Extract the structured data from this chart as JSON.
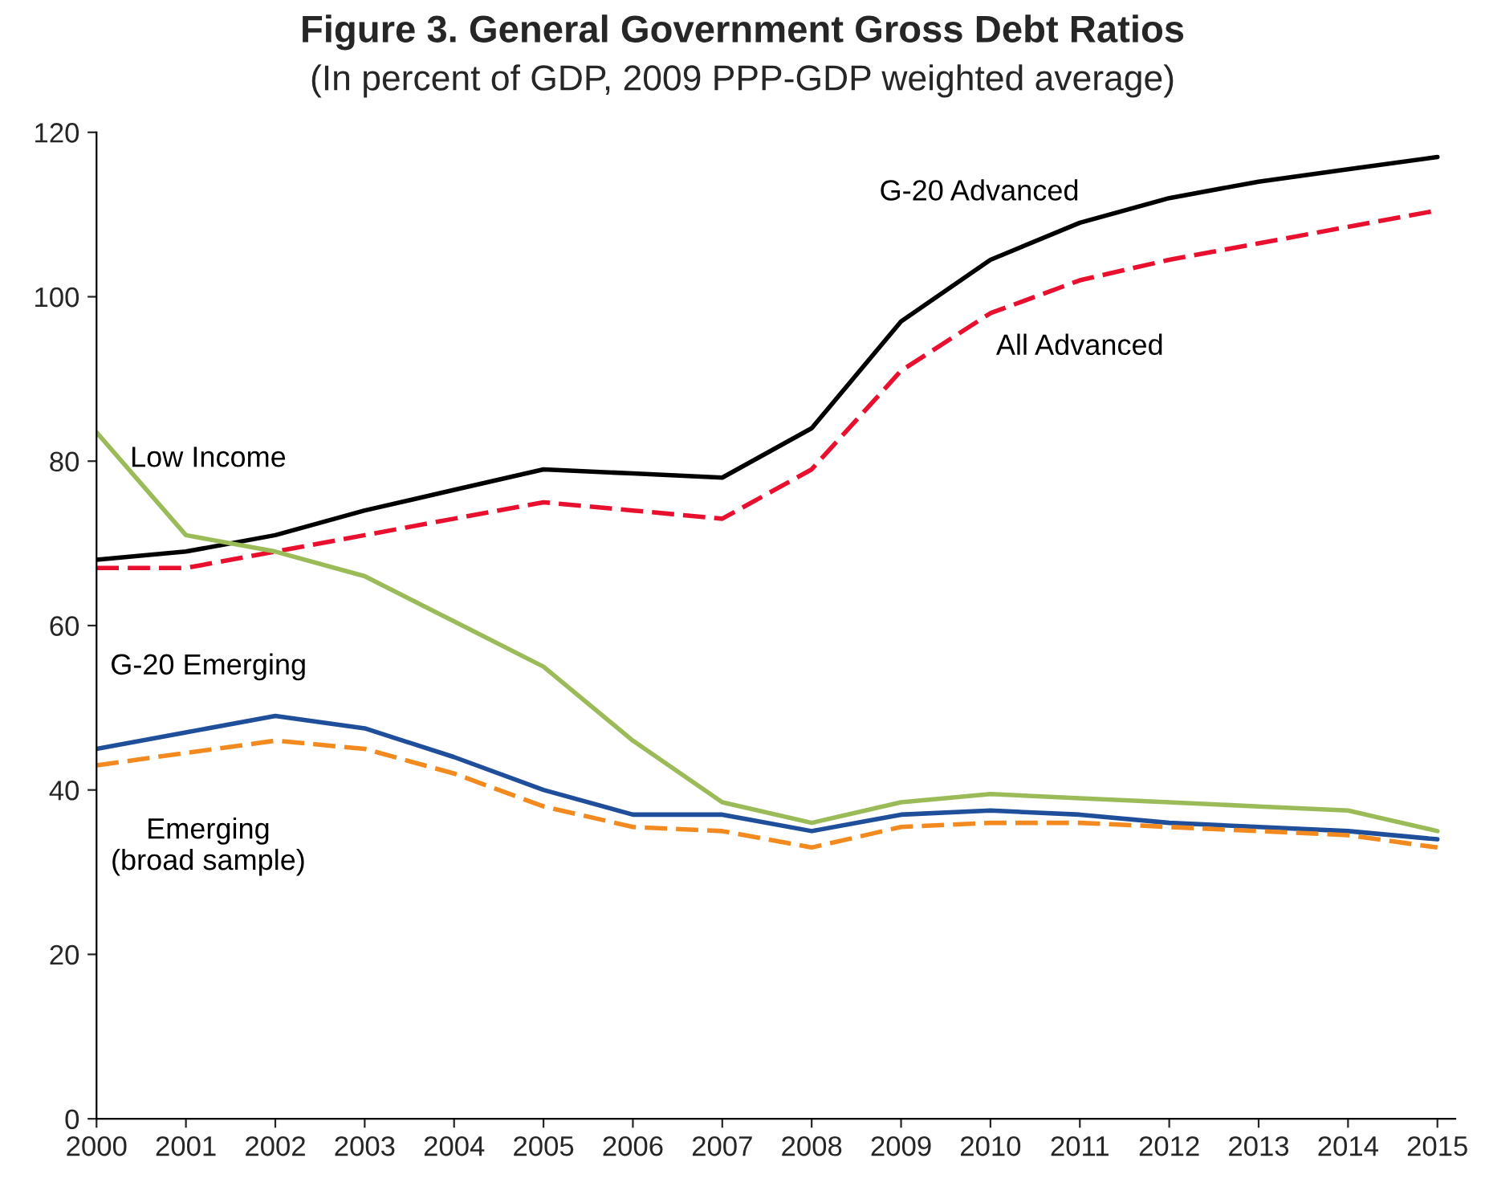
{
  "chart_data": {
    "type": "line",
    "title": "Figure 3. General Government Gross Debt Ratios",
    "subtitle": "(In percent of GDP, 2009 PPP-GDP weighted average)",
    "x": [
      2000,
      2001,
      2002,
      2003,
      2004,
      2005,
      2006,
      2007,
      2008,
      2009,
      2010,
      2011,
      2012,
      2013,
      2014,
      2015
    ],
    "series": [
      {
        "name": "G-20 Advanced",
        "color": "#000000",
        "line_style": "solid",
        "values": [
          68,
          69,
          71,
          74,
          76.5,
          79,
          78.5,
          78,
          84,
          97,
          104.5,
          109,
          112,
          114,
          115.5,
          117
        ]
      },
      {
        "name": "All Advanced",
        "color": "#e8102e",
        "line_style": "dashed",
        "values": [
          67,
          67,
          69,
          71,
          73,
          75,
          74,
          73,
          79,
          91,
          98,
          102,
          104.5,
          106.5,
          108.5,
          110.5
        ]
      },
      {
        "name": "Low Income",
        "color": "#9bbb59",
        "line_style": "solid",
        "values": [
          83.5,
          71,
          69,
          66,
          60.5,
          55,
          46,
          38.5,
          36,
          38.5,
          39.5,
          39,
          38.5,
          38,
          37.5,
          35
        ]
      },
      {
        "name": "G-20 Emerging",
        "color": "#1f4e9b",
        "line_style": "solid",
        "values": [
          45,
          47,
          49,
          47.5,
          44,
          40,
          37,
          37,
          35,
          37,
          37.5,
          37,
          36,
          35.5,
          35,
          34
        ]
      },
      {
        "name": "Emerging\n(broad sample)",
        "color": "#f28a1f",
        "line_style": "dashed",
        "values": [
          43,
          44.5,
          46,
          45,
          42,
          38,
          35.5,
          35,
          33,
          35.5,
          36,
          36,
          35.5,
          35,
          34.5,
          33
        ]
      }
    ],
    "xlim": [
      2000,
      2015.2
    ],
    "xticks": [
      2000,
      2001,
      2002,
      2003,
      2004,
      2005,
      2006,
      2007,
      2008,
      2009,
      2010,
      2011,
      2012,
      2013,
      2014,
      2015
    ],
    "ylim": [
      0,
      120
    ],
    "yticks": [
      0,
      20,
      40,
      60,
      80,
      100,
      120
    ],
    "grid": false,
    "legend": false,
    "marker": "none"
  }
}
